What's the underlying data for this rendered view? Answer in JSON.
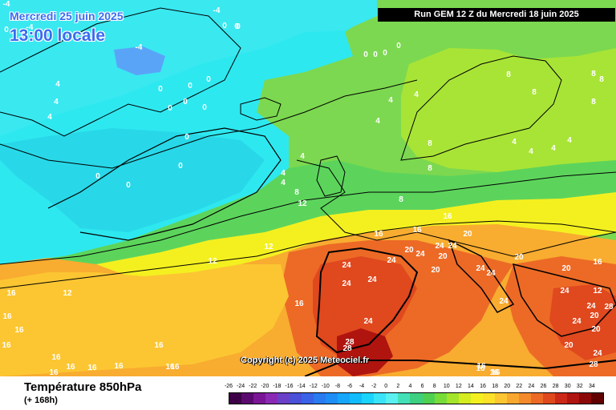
{
  "header": {
    "date_line": "Mercredi 25 juin 2025",
    "time_line": "13:00 locale",
    "run_label": "Run GEM 12 Z du Mercredi 18 juin 2025"
  },
  "copyright": "Copyright (c) 2025 Meteociel.fr",
  "footer": {
    "variable_title": "Température 850hPa",
    "lead_time": "(+ 168h)"
  },
  "legend": {
    "labels": [
      "-26",
      "-24",
      "-22",
      "-20",
      "-18",
      "-16",
      "-14",
      "-12",
      "-10",
      "-8",
      "-6",
      "-4",
      "-2",
      "0",
      "2",
      "4",
      "6",
      "8",
      "10",
      "12",
      "14",
      "16",
      "18",
      "20",
      "22",
      "24",
      "26",
      "28",
      "30",
      "32",
      "34"
    ],
    "colors": [
      "#3d0046",
      "#5a0a6e",
      "#7a1696",
      "#8a2ab4",
      "#6a40c8",
      "#4a50d8",
      "#3a62e8",
      "#2a7af0",
      "#1e8ef6",
      "#16a6fa",
      "#12bcfc",
      "#1ad4fc",
      "#3ae4f8",
      "#5af0f0",
      "#44e0b8",
      "#3cd080",
      "#50d050",
      "#78dc38",
      "#a4e42a",
      "#d4ec20",
      "#f4f020",
      "#fce02a",
      "#fcc632",
      "#f8a830",
      "#f48a2c",
      "#ec6a26",
      "#e0481e",
      "#cc2818",
      "#b01410",
      "#8c0808",
      "#600000"
    ]
  },
  "isotherm_labels": [
    {
      "t": "-4"
    },
    {
      "t": "-4"
    },
    {
      "t": "-4"
    },
    {
      "t": "0"
    },
    {
      "t": "0"
    },
    {
      "t": "-4"
    },
    {
      "t": "0"
    },
    {
      "t": "0"
    },
    {
      "t": "0"
    },
    {
      "t": "0"
    },
    {
      "t": "0"
    },
    {
      "t": "0"
    },
    {
      "t": "4"
    },
    {
      "t": "4"
    },
    {
      "t": "4"
    },
    {
      "t": "0"
    },
    {
      "t": "0"
    },
    {
      "t": "0"
    },
    {
      "t": "0"
    },
    {
      "t": "0"
    },
    {
      "t": "0"
    },
    {
      "t": "0"
    },
    {
      "t": "0"
    },
    {
      "t": "0"
    },
    {
      "t": "0"
    },
    {
      "t": "4"
    },
    {
      "t": "4"
    },
    {
      "t": "4"
    },
    {
      "t": "8"
    },
    {
      "t": "12"
    },
    {
      "t": "4"
    },
    {
      "t": "4"
    },
    {
      "t": "4"
    },
    {
      "t": "8"
    },
    {
      "t": "8"
    },
    {
      "t": "8"
    },
    {
      "t": "8"
    },
    {
      "t": "4"
    },
    {
      "t": "4"
    },
    {
      "t": "4"
    },
    {
      "t": "4"
    },
    {
      "t": "8"
    },
    {
      "t": "8"
    },
    {
      "t": "8"
    },
    {
      "t": "8"
    },
    {
      "t": "16"
    },
    {
      "t": "16"
    },
    {
      "t": "16"
    },
    {
      "t": "20"
    },
    {
      "t": "12"
    },
    {
      "t": "12"
    },
    {
      "t": "12"
    },
    {
      "t": "16"
    },
    {
      "t": "16"
    },
    {
      "t": "16"
    },
    {
      "t": "16"
    },
    {
      "t": "16"
    },
    {
      "t": "16"
    },
    {
      "t": "16"
    },
    {
      "t": "16"
    },
    {
      "t": "16"
    },
    {
      "t": "16"
    },
    {
      "t": "24"
    },
    {
      "t": "24"
    },
    {
      "t": "24"
    },
    {
      "t": "24"
    },
    {
      "t": "20"
    },
    {
      "t": "24"
    },
    {
      "t": "24"
    },
    {
      "t": "20"
    },
    {
      "t": "20"
    },
    {
      "t": "24"
    },
    {
      "t": "24"
    },
    {
      "t": "24"
    },
    {
      "t": "20"
    },
    {
      "t": "20"
    },
    {
      "t": "24"
    },
    {
      "t": "28"
    },
    {
      "t": "28"
    },
    {
      "t": "24"
    },
    {
      "t": "16"
    },
    {
      "t": "16"
    },
    {
      "t": "24"
    },
    {
      "t": "24"
    },
    {
      "t": "24"
    },
    {
      "t": "20"
    },
    {
      "t": "20"
    },
    {
      "t": "20"
    },
    {
      "t": "28"
    },
    {
      "t": "24"
    },
    {
      "t": "28"
    },
    {
      "t": "12"
    },
    {
      "t": "16"
    },
    {
      "t": "16"
    },
    {
      "t": "16"
    },
    {
      "t": "16"
    },
    {
      "t": "16"
    },
    {
      "t": "16"
    }
  ]
}
